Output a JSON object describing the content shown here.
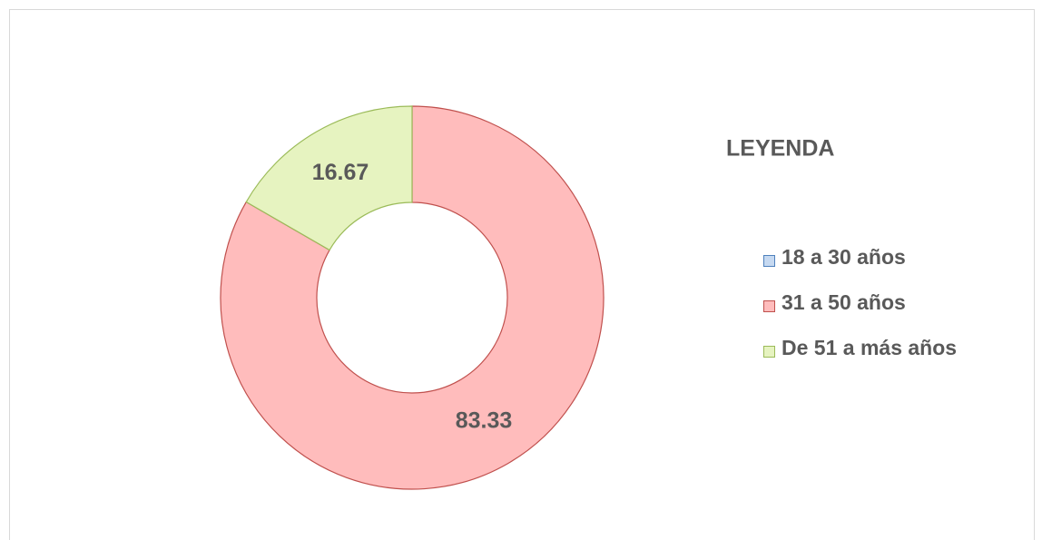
{
  "chart_data": {
    "type": "donut",
    "legend_title": "LEYENDA",
    "categories": [
      "18 a 30 años",
      "31 a 50 años",
      "De 51 a más años"
    ],
    "values": [
      0,
      83.33,
      16.67
    ],
    "value_labels": [
      null,
      "83.33",
      "16.67"
    ],
    "colors": [
      "#c6d9f1",
      "#ffbcbc",
      "#e6f3c0"
    ],
    "edge_colors": [
      "#4f81bd",
      "#c0504d",
      "#9bbb59"
    ],
    "legend": "right"
  }
}
